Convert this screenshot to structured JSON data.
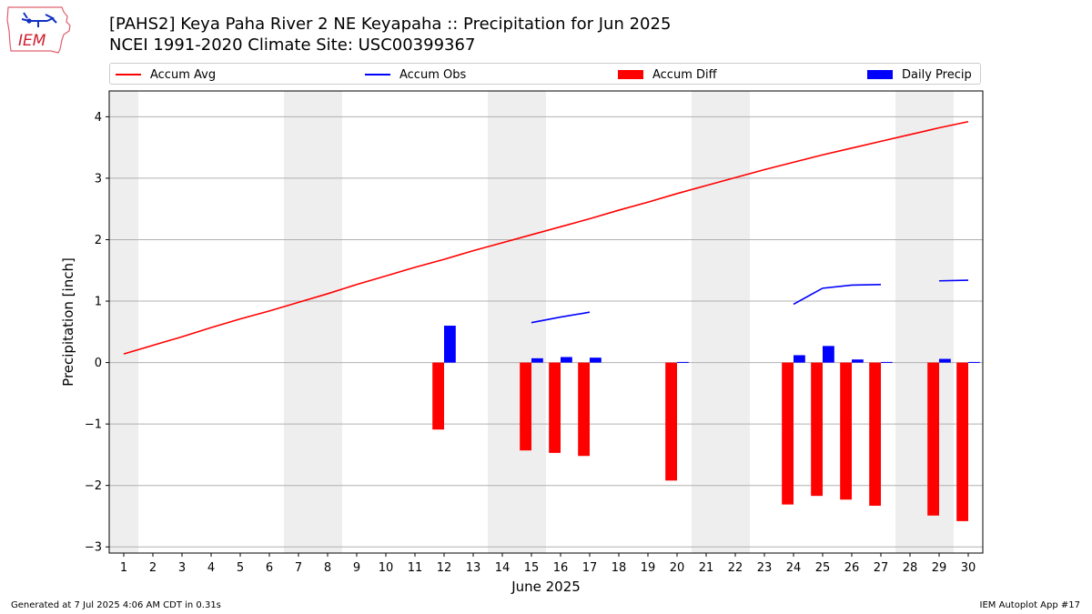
{
  "header": {
    "title_line1": "[PAHS2] Keya Paha River 2 NE Keyapaha :: Precipitation for Jun 2025",
    "title_line2": "NCEI 1991-2020 Climate Site: USC00399367",
    "logo_text": "IEM"
  },
  "footer": {
    "generated": "Generated at 7 Jul 2025 4:06 AM CDT in 0.31s",
    "app": "IEM Autoplot App #17"
  },
  "colors": {
    "accum_avg": "#ff0000",
    "accum_obs": "#0000ff",
    "accum_diff": "#ff0000",
    "daily_precip": "#0000ff",
    "weekend_band": "#eeeeee",
    "grid": "#b0b0b0"
  },
  "chart_data": {
    "type": "bar",
    "xlabel": "June 2025",
    "ylabel": "Precipitation [inch]",
    "xlim": [
      0.5,
      30.5
    ],
    "ylim": [
      -3.1,
      4.42
    ],
    "x_ticks": [
      1,
      2,
      3,
      4,
      5,
      6,
      7,
      8,
      9,
      10,
      11,
      12,
      13,
      14,
      15,
      16,
      17,
      18,
      19,
      20,
      21,
      22,
      23,
      24,
      25,
      26,
      27,
      28,
      29,
      30
    ],
    "y_ticks": [
      -3,
      -2,
      -1,
      0,
      1,
      2,
      3,
      4
    ],
    "y_tick_labels": [
      "−3",
      "−2",
      "−1",
      "0",
      "1",
      "2",
      "3",
      "4"
    ],
    "grid": "horizontal",
    "legend_position": "top",
    "weekend_days": [
      1,
      7,
      8,
      14,
      15,
      21,
      22,
      28,
      29
    ],
    "legend": [
      "Accum Avg",
      "Accum Obs",
      "Accum Diff",
      "Daily Precip"
    ],
    "series": [
      {
        "name": "Accum Avg",
        "kind": "line",
        "x": [
          1,
          2,
          3,
          4,
          5,
          6,
          7,
          8,
          9,
          10,
          11,
          12,
          13,
          14,
          15,
          16,
          17,
          18,
          19,
          20,
          21,
          22,
          23,
          24,
          25,
          26,
          27,
          28,
          29,
          30
        ],
        "values": [
          0.14,
          0.28,
          0.42,
          0.57,
          0.71,
          0.84,
          0.98,
          1.12,
          1.27,
          1.41,
          1.55,
          1.68,
          1.82,
          1.95,
          2.08,
          2.21,
          2.34,
          2.48,
          2.61,
          2.75,
          2.88,
          3.01,
          3.14,
          3.26,
          3.38,
          3.49,
          3.6,
          3.71,
          3.82,
          3.92
        ]
      },
      {
        "name": "Accum Obs",
        "kind": "line",
        "segments": [
          {
            "x": [
              15,
              16,
              17
            ],
            "values": [
              0.65,
              0.74,
              0.82
            ]
          },
          {
            "x": [
              24,
              25,
              26,
              27
            ],
            "values": [
              0.95,
              1.21,
              1.26,
              1.27
            ]
          },
          {
            "x": [
              29,
              30
            ],
            "values": [
              1.33,
              1.34
            ]
          }
        ]
      },
      {
        "name": "Accum Diff",
        "kind": "bar",
        "x": [
          12,
          15,
          16,
          17,
          20,
          24,
          25,
          26,
          27,
          29,
          30
        ],
        "values": [
          -1.09,
          -1.43,
          -1.47,
          -1.52,
          -1.92,
          -2.31,
          -2.17,
          -2.23,
          -2.33,
          -2.49,
          -2.58
        ]
      },
      {
        "name": "Daily Precip",
        "kind": "bar",
        "x": [
          12,
          15,
          16,
          17,
          20,
          24,
          25,
          26,
          27,
          29,
          30
        ],
        "values": [
          0.6,
          0.07,
          0.09,
          0.08,
          0.01,
          0.12,
          0.27,
          0.05,
          0.01,
          0.06,
          0.01
        ]
      }
    ]
  }
}
